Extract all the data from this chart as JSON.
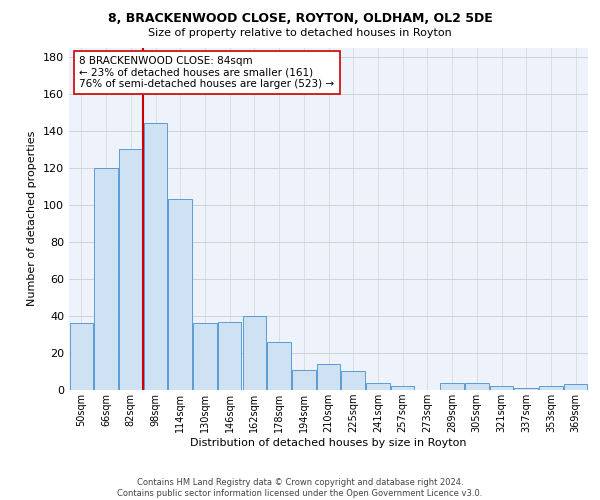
{
  "title1": "8, BRACKENWOOD CLOSE, ROYTON, OLDHAM, OL2 5DE",
  "title2": "Size of property relative to detached houses in Royton",
  "xlabel": "Distribution of detached houses by size in Royton",
  "ylabel": "Number of detached properties",
  "footer1": "Contains HM Land Registry data © Crown copyright and database right 2024.",
  "footer2": "Contains public sector information licensed under the Open Government Licence v3.0.",
  "annotation_line1": "8 BRACKENWOOD CLOSE: 84sqm",
  "annotation_line2": "← 23% of detached houses are smaller (161)",
  "annotation_line3": "76% of semi-detached houses are larger (523) →",
  "bar_edge_color": "#5b9bd5",
  "bar_face_color": "#cfe2f3",
  "grid_color": "#cccccc",
  "background_color": "#eef2fb",
  "marker_line_color": "#cc0000",
  "categories": [
    "50sqm",
    "66sqm",
    "82sqm",
    "98sqm",
    "114sqm",
    "130sqm",
    "146sqm",
    "162sqm",
    "178sqm",
    "194sqm",
    "210sqm",
    "225sqm",
    "241sqm",
    "257sqm",
    "273sqm",
    "289sqm",
    "305sqm",
    "321sqm",
    "337sqm",
    "353sqm",
    "369sqm"
  ],
  "values": [
    36,
    120,
    130,
    144,
    103,
    36,
    37,
    40,
    26,
    11,
    14,
    10,
    4,
    2,
    0,
    4,
    4,
    2,
    1,
    2,
    3
  ],
  "ylim": [
    0,
    185
  ],
  "yticks": [
    0,
    20,
    40,
    60,
    80,
    100,
    120,
    140,
    160,
    180
  ],
  "marker_bin_index": 2,
  "title1_fontsize": 9,
  "title2_fontsize": 8,
  "ylabel_fontsize": 8,
  "xlabel_fontsize": 8,
  "tick_fontsize": 7,
  "footer_fontsize": 6,
  "annot_fontsize": 7.5
}
